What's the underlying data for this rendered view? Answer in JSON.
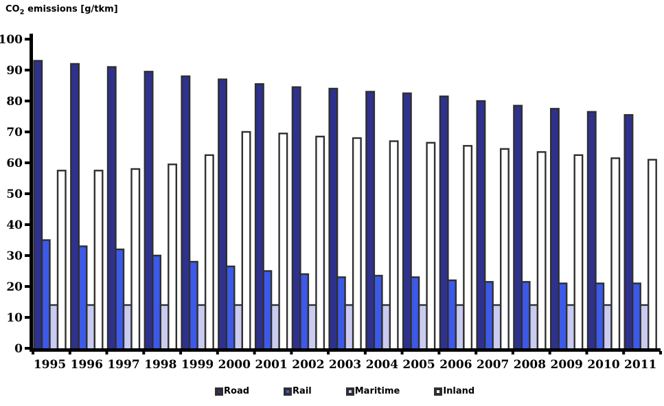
{
  "title": {
    "prefix": "CO",
    "sub": "2",
    "suffix": " emissions [g/tkm]"
  },
  "colors": {
    "road": "#2f318e",
    "rail": "#3c59e8",
    "maritime": "#cacbf0",
    "inland": "#ffffff",
    "outline": "#2f2f2f",
    "axis": "#000000"
  },
  "legend": {
    "items": [
      {
        "label": "Road",
        "color_key": "road"
      },
      {
        "label": "Rail",
        "color_key": "rail"
      },
      {
        "label": "Maritime",
        "color_key": "maritime"
      },
      {
        "label": "Inland",
        "color_key": "inland"
      }
    ]
  },
  "chart_data": {
    "type": "bar",
    "title": "CO2 emissions [g/tkm]",
    "xlabel": "",
    "ylabel": "CO2 emissions [g/tkm]",
    "ylim": [
      0,
      100
    ],
    "ytick_step": 10,
    "grid": false,
    "legend_position": "bottom",
    "categories": [
      1995,
      1996,
      1997,
      1998,
      1999,
      2000,
      2001,
      2002,
      2003,
      2004,
      2005,
      2006,
      2007,
      2008,
      2009,
      2010,
      2011
    ],
    "series": [
      {
        "name": "Road",
        "values": [
          93,
          92,
          91,
          89.5,
          88,
          87,
          85.5,
          84.5,
          84,
          83,
          82.5,
          81.5,
          80,
          78.5,
          77.5,
          76.5,
          75.5
        ]
      },
      {
        "name": "Rail",
        "values": [
          35,
          33,
          32,
          30,
          28,
          26.5,
          25,
          24,
          23,
          23.5,
          23,
          22,
          21.5,
          21.5,
          21,
          21,
          21
        ]
      },
      {
        "name": "Maritime",
        "values": [
          14,
          14,
          14,
          14,
          14,
          14,
          14,
          14,
          14,
          14,
          14,
          14,
          14,
          14,
          14,
          14,
          14
        ]
      },
      {
        "name": "Inland",
        "values": [
          57.5,
          57.5,
          58,
          59.5,
          62.5,
          70,
          69.5,
          68.5,
          68,
          67,
          66.5,
          65.5,
          64.5,
          63.5,
          62.5,
          61.5,
          61
        ]
      }
    ]
  }
}
